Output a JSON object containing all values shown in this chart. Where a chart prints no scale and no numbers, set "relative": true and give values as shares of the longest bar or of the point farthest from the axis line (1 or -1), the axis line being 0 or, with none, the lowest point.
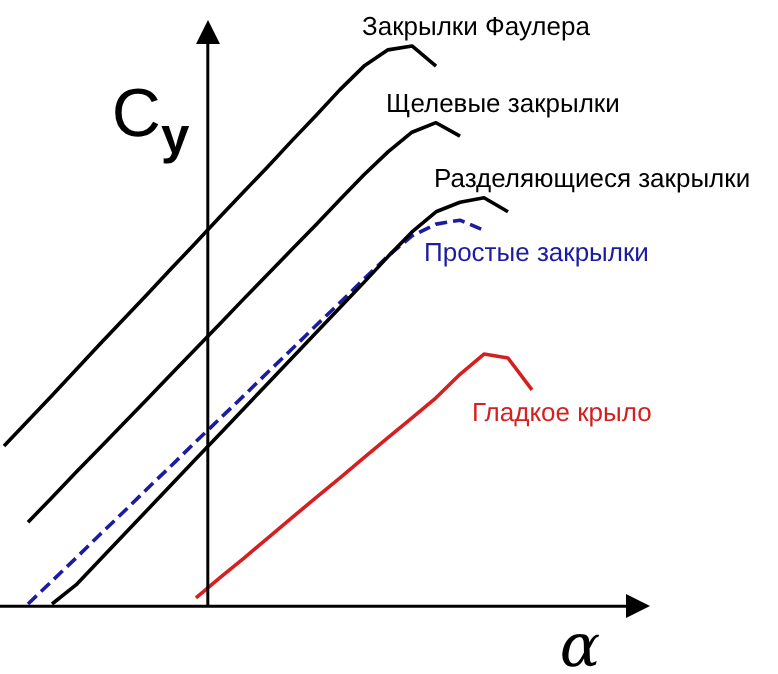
{
  "chart_data": {
    "type": "line",
    "relative": true,
    "xlabel": "α",
    "ylabel": "C$_{y}$",
    "marker": "none",
    "categories": [
      null,
      null,
      null,
      null,
      null,
      null,
      null,
      null,
      null,
      null,
      null,
      null,
      null,
      null,
      null,
      null,
      null,
      null,
      null,
      null,
      null,
      null,
      null
    ],
    "series": [
      {
        "name": "Закрылки Фаулера",
        "color": "#000000",
        "values": [
          0.286,
          0.331,
          0.376,
          0.422,
          0.468,
          0.513,
          0.558,
          0.604,
          0.649,
          0.695,
          0.74,
          0.785,
          0.831,
          0.876,
          0.922,
          0.964,
          0.993,
          1.0,
          0.964,
          null,
          null,
          null,
          null
        ]
      },
      {
        "name": "Щелевые закрылки",
        "color": "#000000",
        "values": [
          null,
          0.15,
          0.194,
          0.239,
          0.283,
          0.327,
          0.371,
          0.416,
          0.46,
          0.504,
          0.549,
          0.593,
          0.637,
          0.681,
          0.726,
          0.77,
          0.811,
          0.846,
          0.863,
          0.839,
          null,
          null,
          null
        ]
      },
      {
        "name": "Разделяющиеся закрылки",
        "color": "#000000",
        "values": [
          null,
          null,
          0.004,
          0.038,
          0.083,
          0.128,
          0.173,
          0.218,
          0.263,
          0.308,
          0.353,
          0.398,
          0.443,
          0.488,
          0.533,
          0.578,
          0.624,
          0.668,
          0.704,
          0.721,
          0.729,
          0.704,
          null
        ]
      },
      {
        "name": "Простые закрылки",
        "color": "#1c1ca0",
        "line_style": "dashed",
        "values": [
          null,
          0.004,
          0.045,
          0.086,
          0.128,
          0.169,
          0.211,
          0.252,
          0.294,
          0.335,
          0.376,
          0.418,
          0.459,
          0.501,
          0.542,
          0.584,
          0.625,
          0.661,
          0.682,
          0.689,
          0.671,
          null,
          null
        ]
      },
      {
        "name": "Гладкое крыло",
        "color": "#d42020",
        "values": [
          null,
          null,
          null,
          null,
          null,
          null,
          null,
          null,
          0.015,
          0.051,
          0.086,
          0.122,
          0.158,
          0.194,
          0.229,
          0.265,
          0.301,
          0.336,
          0.372,
          0.414,
          0.45,
          0.443,
          0.386
        ]
      }
    ]
  }
}
